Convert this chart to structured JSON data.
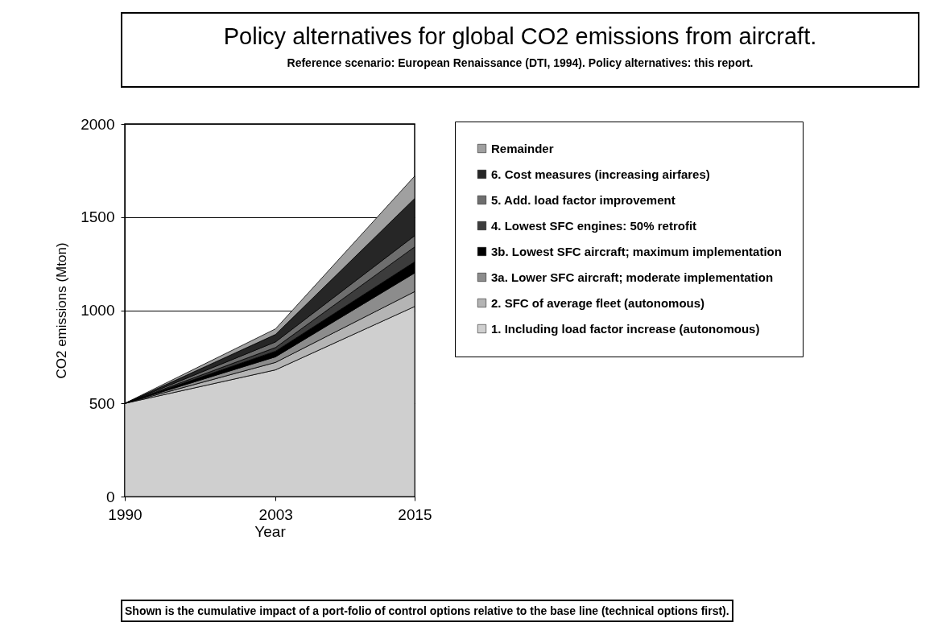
{
  "chart_data": {
    "type": "area",
    "title": "Policy alternatives for global CO2 emissions from aircraft.",
    "subtitle": "Reference scenario: European Renaissance (DTI, 1994). Policy alternatives: this report.",
    "xlabel": "Year",
    "ylabel": "CO2 emissions (Mton)",
    "stacked": true,
    "x": [
      1990,
      2003,
      2015
    ],
    "xlim": [
      1990,
      2015
    ],
    "xticks": [
      1990,
      2003,
      2015
    ],
    "ylim": [
      0,
      2000
    ],
    "yticks": [
      0,
      500,
      1000,
      1500,
      2000
    ],
    "grid": "y",
    "legend": "right",
    "series": [
      {
        "name": "1. Including load factor increase (autonomous)",
        "color": "#cfcfcf",
        "values": [
          500,
          680,
          1020
        ]
      },
      {
        "name": "2. SFC of average fleet (autonomous)",
        "color": "#b4b4b4",
        "values": [
          0,
          40,
          80
        ]
      },
      {
        "name": "3a. Lower SFC aircraft; moderate implementation",
        "color": "#8c8c8c",
        "values": [
          0,
          30,
          100
        ]
      },
      {
        "name": "3b. Lowest SFC aircraft; maximum implementation",
        "color": "#000000",
        "values": [
          0,
          30,
          60
        ]
      },
      {
        "name": "4. Lowest SFC engines: 50% retrofit",
        "color": "#3c3c3c",
        "values": [
          0,
          20,
          80
        ]
      },
      {
        "name": "5. Add. load factor improvement",
        "color": "#6e6e6e",
        "values": [
          0,
          30,
          60
        ]
      },
      {
        "name": "6. Cost measures (increasing airfares)",
        "color": "#262626",
        "values": [
          0,
          40,
          200
        ]
      },
      {
        "name": "Remainder",
        "color": "#a0a0a0",
        "values": [
          0,
          30,
          120
        ]
      }
    ],
    "annotations": [
      "Shown is the cumulative impact of a port-folio of control options relative to the base line (technical options first)."
    ]
  }
}
